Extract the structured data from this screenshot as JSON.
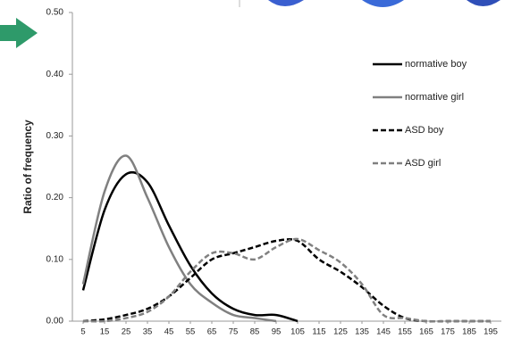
{
  "chart_data": {
    "type": "line",
    "ylabel": "Ratio of frequency",
    "x": [
      5,
      15,
      25,
      35,
      45,
      55,
      65,
      75,
      85,
      95,
      105,
      115,
      125,
      135,
      145,
      155,
      165,
      175,
      185,
      195
    ],
    "xlim": [
      0,
      200
    ],
    "xticks": [
      5,
      15,
      25,
      35,
      45,
      55,
      65,
      75,
      85,
      95,
      105,
      115,
      125,
      135,
      145,
      155,
      165,
      175,
      185,
      195
    ],
    "ylim": [
      0,
      0.5
    ],
    "yticks": [
      {
        "value": 0,
        "label": "0.00"
      },
      {
        "value": 0.1,
        "label": "0.10"
      },
      {
        "value": 0.2,
        "label": "0.20"
      },
      {
        "value": 0.3,
        "label": "0.30"
      },
      {
        "value": 0.4,
        "label": "0.40"
      },
      {
        "value": 0.5,
        "label": "0.50"
      }
    ],
    "grid": false,
    "legend": "right",
    "series": [
      {
        "name": "normative boy",
        "color": "#000000",
        "linestyle": "solid",
        "values": [
          0.05,
          0.18,
          0.238,
          0.225,
          0.155,
          0.09,
          0.045,
          0.02,
          0.01,
          0.01,
          0.0,
          null,
          null,
          null,
          null,
          null,
          null,
          null,
          null,
          null
        ]
      },
      {
        "name": "normative girl",
        "color": "#808080",
        "linestyle": "solid",
        "values": [
          0.06,
          0.21,
          0.268,
          0.2,
          0.12,
          0.06,
          0.03,
          0.01,
          0.005,
          0.0,
          null,
          null,
          null,
          null,
          null,
          null,
          null,
          null,
          null,
          null
        ]
      },
      {
        "name": "ASD boy",
        "color": "#000000",
        "linestyle": "dashed",
        "values": [
          0,
          0.003,
          0.01,
          0.02,
          0.04,
          0.07,
          0.1,
          0.11,
          0.12,
          0.13,
          0.13,
          0.1,
          0.08,
          0.055,
          0.025,
          0.005,
          0,
          0,
          0,
          0
        ]
      },
      {
        "name": "ASD girl",
        "color": "#808080",
        "linestyle": "dashed",
        "values": [
          0,
          0,
          0.005,
          0.015,
          0.04,
          0.08,
          0.11,
          0.11,
          0.1,
          0.12,
          0.133,
          0.115,
          0.095,
          0.06,
          0.01,
          0.005,
          0,
          0,
          0,
          0
        ]
      }
    ]
  }
}
